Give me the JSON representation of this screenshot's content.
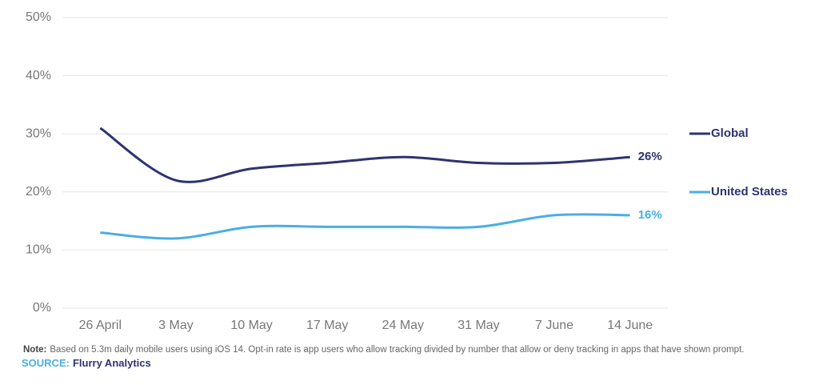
{
  "chart_data": {
    "type": "line",
    "categories": [
      "26 April",
      "3 May",
      "10 May",
      "17 May",
      "24 May",
      "31 May",
      "7 June",
      "14 June"
    ],
    "series": [
      {
        "name": "Global",
        "color": "#2e3370",
        "values": [
          31,
          22,
          24,
          25,
          26,
          25,
          25,
          26
        ],
        "value_labels": [
          null,
          null,
          null,
          null,
          null,
          null,
          null,
          "26%"
        ]
      },
      {
        "name": "United States",
        "color": "#4aaee6",
        "values": [
          13,
          12,
          14,
          14,
          14,
          14,
          16,
          16
        ],
        "value_labels": [
          null,
          null,
          null,
          null,
          null,
          null,
          null,
          "16%"
        ]
      }
    ],
    "ylim": [
      0,
      50
    ],
    "yticks": [
      {
        "value": 0,
        "label": "0%"
      },
      {
        "value": 10,
        "label": "10%"
      },
      {
        "value": 20,
        "label": "20%"
      },
      {
        "value": 30,
        "label": "30%"
      },
      {
        "value": 40,
        "label": "40%"
      },
      {
        "value": 50,
        "label": "50%"
      }
    ],
    "grid": true,
    "legend": "right",
    "note_label": "Note:",
    "note": "Based on 5.3m daily mobile users using iOS 14. Opt-in rate is app users who allow tracking divided by number that allow or deny tracking in apps that have shown prompt.",
    "source_label": "SOURCE:",
    "source": "Flurry Analytics"
  }
}
